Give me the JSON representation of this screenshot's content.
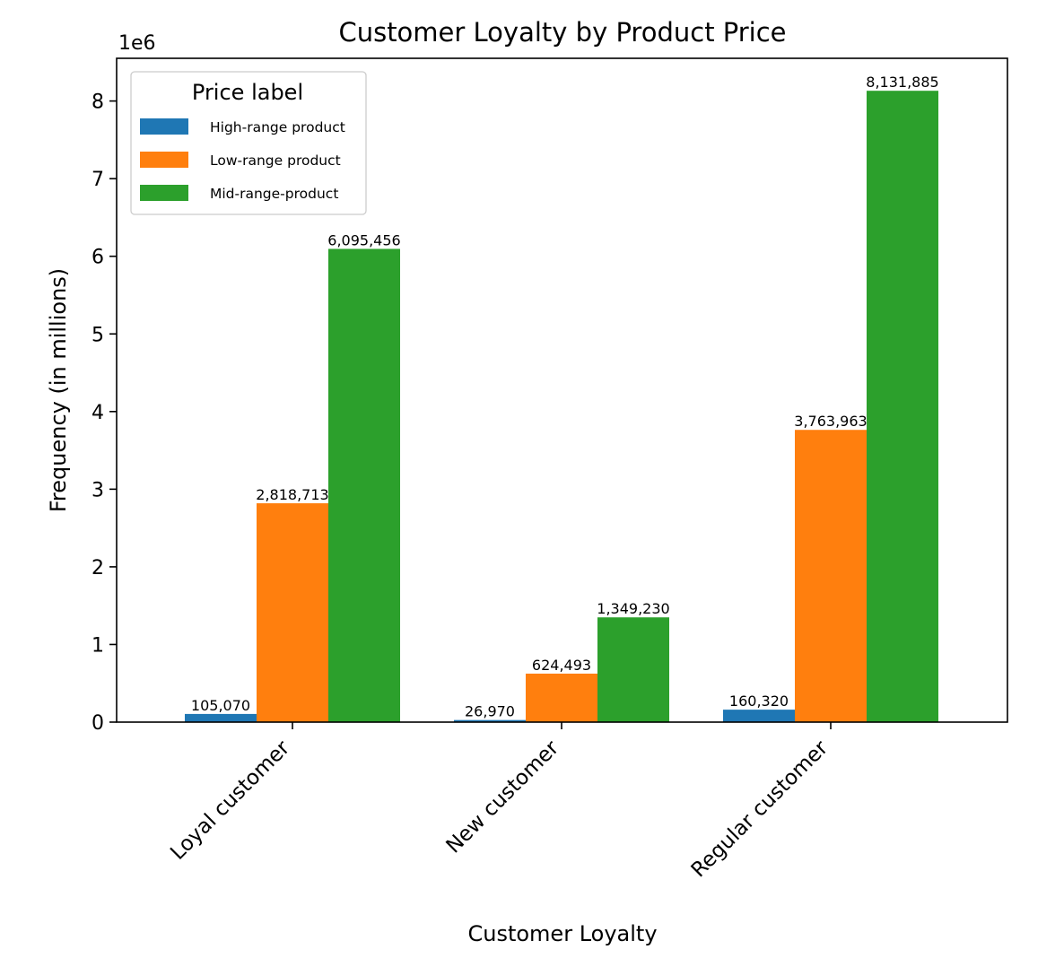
{
  "chart_data": {
    "type": "bar",
    "title": "Customer Loyalty by Product Price",
    "xlabel": "Customer Loyalty",
    "ylabel": "Frequency (in millions)",
    "y_offset_label": "1e6",
    "ylim": [
      0,
      8550000
    ],
    "yticks": [
      0,
      1000000,
      2000000,
      3000000,
      4000000,
      5000000,
      6000000,
      7000000,
      8000000
    ],
    "ytick_labels": [
      "0",
      "1",
      "2",
      "3",
      "4",
      "5",
      "6",
      "7",
      "8"
    ],
    "categories": [
      "Loyal customer",
      "New customer",
      "Regular customer"
    ],
    "series": [
      {
        "name": "High-range product",
        "color": "#1f77b4",
        "values": [
          105070,
          26970,
          160320
        ],
        "labels": [
          "105,070",
          "26,970",
          "160,320"
        ]
      },
      {
        "name": "Low-range product",
        "color": "#ff7f0e",
        "values": [
          2818713,
          624493,
          3763963
        ],
        "labels": [
          "2,818,713",
          "624,493",
          "3,763,963"
        ]
      },
      {
        "name": "Mid-range-product",
        "color": "#2ca02c",
        "values": [
          6095456,
          1349230,
          8131885
        ],
        "labels": [
          "6,095,456",
          "1,349,230",
          "8,131,885"
        ]
      }
    ],
    "legend": {
      "title": "Price label",
      "position": "top-left"
    },
    "grid": false
  }
}
